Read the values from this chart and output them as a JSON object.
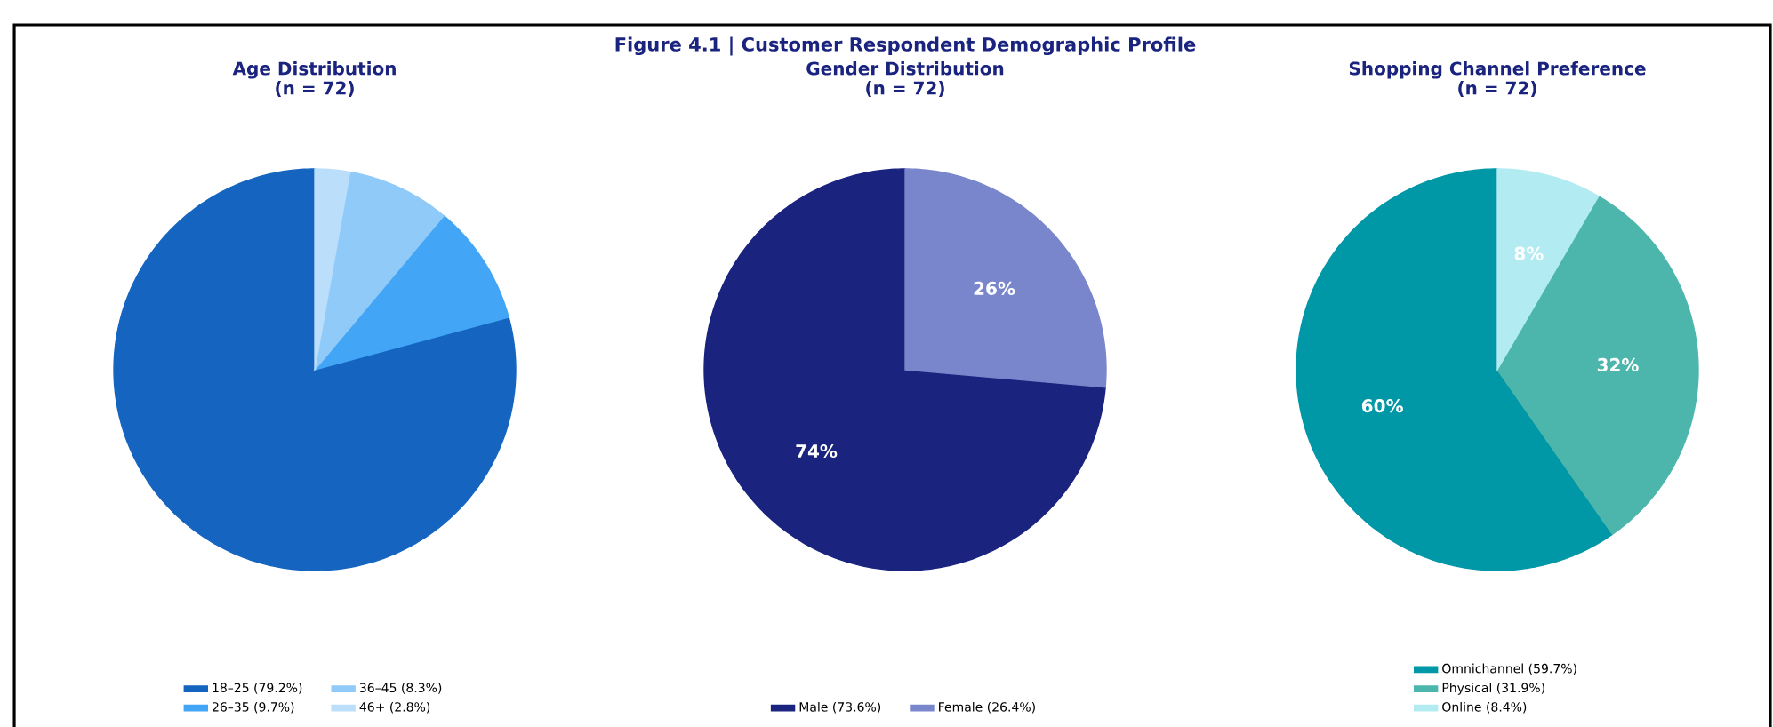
{
  "chart_data": [
    {
      "type": "pie",
      "title": "Age Distribution",
      "subtitle": "(n = 72)",
      "annotations": [
        "Figure 4.1  |  Customer Respondent Demographic Profile"
      ],
      "categories": [
        "18–25 (79.2%)",
        "26–35 (9.7%)",
        "36–45 (8.3%)",
        "46+ (2.8%)"
      ],
      "values": [
        79.2,
        9.7,
        8.3,
        2.8
      ],
      "colors": [
        "#1565c0",
        "#42a5f5",
        "#90caf9",
        "#bbdefb"
      ],
      "legend": "bottom"
    },
    {
      "type": "pie",
      "title": "Gender Distribution",
      "subtitle": "(n = 72)",
      "categories": [
        "Male (73.6%)",
        "Female (26.4%)"
      ],
      "values": [
        73.6,
        26.4
      ],
      "value_labels": [
        "74%",
        "26%"
      ],
      "colors": [
        "#1a237e",
        "#7986cb"
      ],
      "legend": "bottom"
    },
    {
      "type": "pie",
      "title": "Shopping Channel Preference",
      "subtitle": "(n = 72)",
      "categories": [
        "Omnichannel (59.7%)",
        "Physical (31.9%)",
        "Online (8.4%)"
      ],
      "values": [
        59.7,
        31.9,
        8.4
      ],
      "value_labels": [
        "60%",
        "32%",
        "8%"
      ],
      "colors": [
        "#0097a7",
        "#4db6ac",
        "#b2ebf2"
      ],
      "legend": "bottom"
    }
  ]
}
